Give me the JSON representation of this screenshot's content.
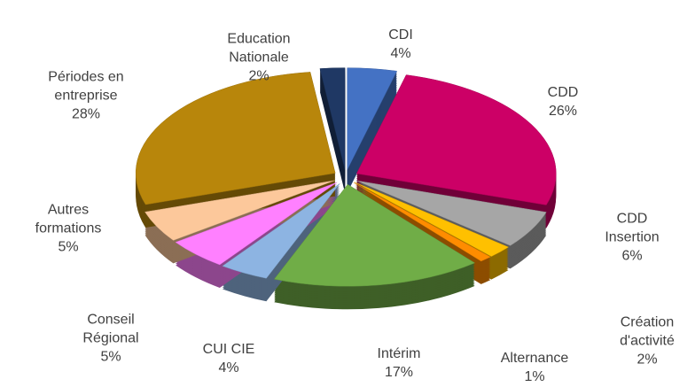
{
  "chart_data": {
    "type": "pie",
    "categories": [
      "CDI",
      "CDD",
      "CDD Insertion",
      "Création d'activité",
      "Alternance",
      "Intérim",
      "CUI CIE",
      "Conseil Régional",
      "Autres formations",
      "Périodes en entreprise",
      "Education Nationale"
    ],
    "values": [
      4,
      26,
      6,
      2,
      1,
      17,
      4,
      5,
      5,
      28,
      2
    ],
    "value_labels": [
      "4%",
      "26%",
      "6%",
      "2%",
      "1%",
      "17%",
      "4%",
      "5%",
      "5%",
      "28%",
      "2%"
    ],
    "colors": [
      "#4472c4",
      "#cc0066",
      "#a6a6a6",
      "#ffc000",
      "#ff8c00",
      "#70ad47",
      "#8db4e2",
      "#ff80ff",
      "#fcc89b",
      "#b8860b",
      "#1f3864"
    ]
  }
}
